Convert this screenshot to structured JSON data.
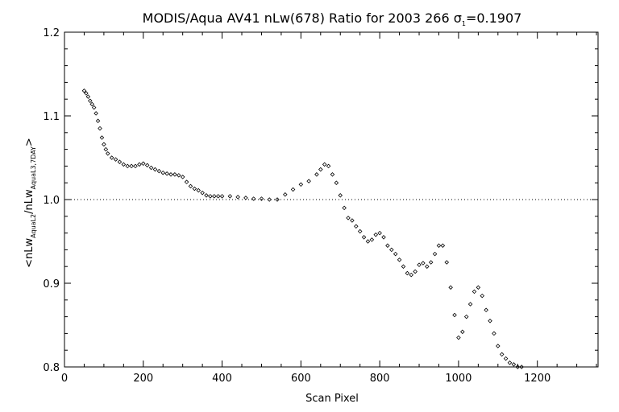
{
  "chart_data": {
    "type": "scatter",
    "title": {
      "main": "MODIS/Aqua AV41 nLw(678) Ratio for 2003 266 ",
      "sigma": "σ",
      "sigma_sub": "1",
      "value": "=0.1907"
    },
    "xlabel": "Scan Pixel",
    "ylabel": {
      "open": "<nLw",
      "sub1": "AquaL2",
      "mid": "/nLw",
      "sub2": "AquaL3,7DAY",
      "close": ">"
    },
    "xlim": [
      0,
      1354
    ],
    "ylim": [
      0.8,
      1.2
    ],
    "xticks": [
      "0",
      "200",
      "400",
      "600",
      "800",
      "1000",
      "1200"
    ],
    "yticks": [
      "0.8",
      "0.9",
      "1.0",
      "1.1",
      "1.2"
    ],
    "reference_line": {
      "y": 1.0,
      "style": "dotted"
    },
    "marker": "diamond-outline",
    "grid": false,
    "series": [
      {
        "x": [
          50,
          55,
          60,
          65,
          70,
          75,
          80,
          85,
          90,
          95,
          100,
          105,
          110,
          120,
          130,
          140,
          150,
          160,
          170,
          180,
          190,
          200,
          210,
          220,
          230,
          240,
          250,
          260,
          270,
          280,
          290,
          300,
          310,
          320,
          330,
          340,
          350,
          360,
          370,
          380,
          390,
          400,
          420,
          440,
          460,
          480,
          500,
          520,
          540,
          560,
          580,
          600,
          620,
          640,
          650,
          660,
          670,
          680,
          690,
          700,
          710,
          720,
          730,
          740,
          750,
          760,
          770,
          780,
          790,
          800,
          810,
          820,
          830,
          840,
          850,
          860,
          870,
          880,
          890,
          900,
          910,
          920,
          930,
          940,
          950,
          960,
          970,
          980,
          990,
          1000,
          1010,
          1020,
          1030,
          1040,
          1050,
          1060,
          1070,
          1080,
          1090,
          1100,
          1110,
          1120,
          1130,
          1140,
          1150,
          1160
        ],
        "y": [
          1.13,
          1.127,
          1.123,
          1.118,
          1.114,
          1.11,
          1.103,
          1.094,
          1.085,
          1.074,
          1.066,
          1.06,
          1.055,
          1.05,
          1.048,
          1.045,
          1.042,
          1.04,
          1.04,
          1.04,
          1.042,
          1.043,
          1.041,
          1.038,
          1.036,
          1.034,
          1.032,
          1.031,
          1.03,
          1.03,
          1.029,
          1.027,
          1.021,
          1.016,
          1.013,
          1.011,
          1.008,
          1.005,
          1.004,
          1.004,
          1.004,
          1.004,
          1.004,
          1.003,
          1.002,
          1.001,
          1.001,
          1.0,
          1.0,
          1.006,
          1.012,
          1.018,
          1.022,
          1.03,
          1.036,
          1.042,
          1.04,
          1.03,
          1.02,
          1.005,
          0.99,
          0.978,
          0.975,
          0.968,
          0.962,
          0.955,
          0.95,
          0.952,
          0.958,
          0.96,
          0.955,
          0.945,
          0.94,
          0.935,
          0.928,
          0.92,
          0.912,
          0.91,
          0.914,
          0.922,
          0.924,
          0.92,
          0.925,
          0.935,
          0.945,
          0.945,
          0.925,
          0.895,
          0.862,
          0.835,
          0.842,
          0.86,
          0.875,
          0.89,
          0.895,
          0.885,
          0.868,
          0.855,
          0.84,
          0.825,
          0.815,
          0.81,
          0.805,
          0.803,
          0.8,
          0.8
        ]
      }
    ]
  }
}
